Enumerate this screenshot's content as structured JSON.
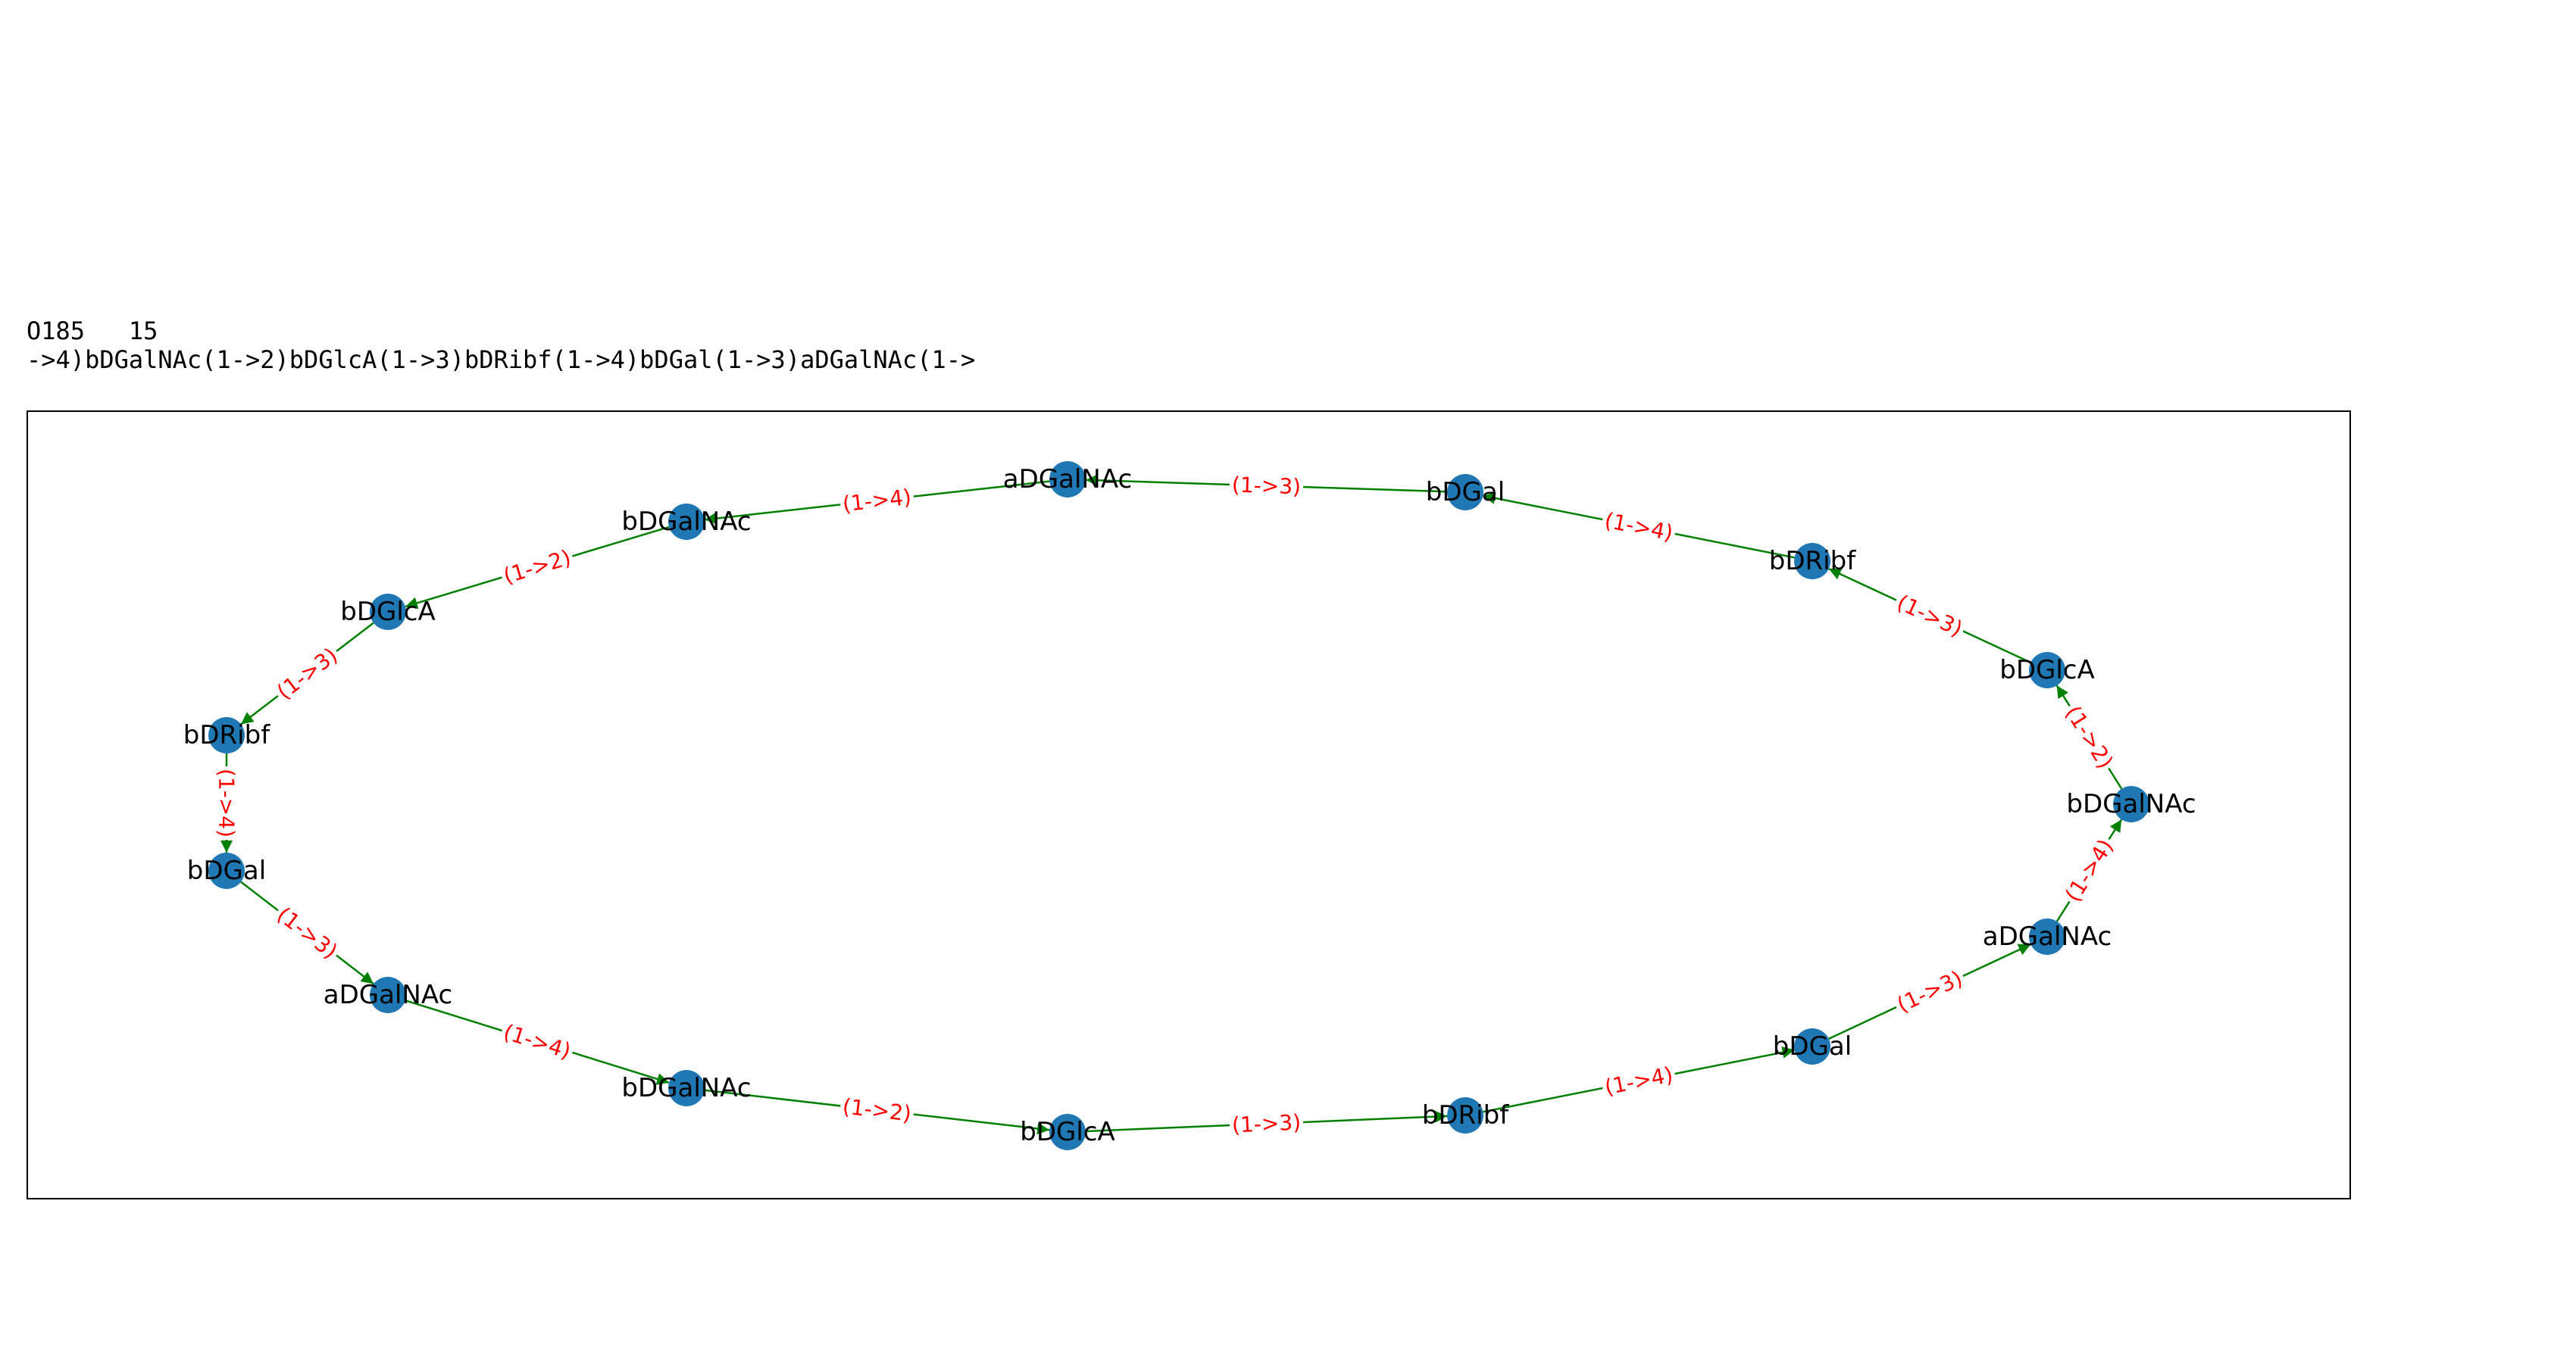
{
  "header": {
    "id_line": "O185   15",
    "formula": "->4)bDGalNAc(1->2)bDGlcA(1->3)bDRibf(1->4)bDGal(1->3)aDGalNAc(1->"
  },
  "colors": {
    "node": "#1f77b4",
    "edge": "#008000",
    "edge_label": "#ff0000",
    "frame": "#000000"
  },
  "graph": {
    "nodes": [
      {
        "id": 0,
        "label": "aDGalNAc"
      },
      {
        "id": 1,
        "label": "bDGal"
      },
      {
        "id": 2,
        "label": "bDRibf"
      },
      {
        "id": 3,
        "label": "bDGlcA"
      },
      {
        "id": 4,
        "label": "bDGalNAc"
      },
      {
        "id": 5,
        "label": "aDGalNAc"
      },
      {
        "id": 6,
        "label": "bDGal"
      },
      {
        "id": 7,
        "label": "bDRibf"
      },
      {
        "id": 8,
        "label": "bDGlcA"
      },
      {
        "id": 9,
        "label": "bDGalNAc"
      },
      {
        "id": 10,
        "label": "aDGalNAc"
      },
      {
        "id": 11,
        "label": "bDGal"
      },
      {
        "id": 12,
        "label": "bDRibf"
      },
      {
        "id": 13,
        "label": "bDGlcA"
      },
      {
        "id": 14,
        "label": "bDGalNAc"
      }
    ],
    "edges": [
      {
        "from": 0,
        "to": 14,
        "label": "(1->4)"
      },
      {
        "from": 14,
        "to": 13,
        "label": "(1->2)"
      },
      {
        "from": 13,
        "to": 12,
        "label": "(1->3)"
      },
      {
        "from": 12,
        "to": 11,
        "label": "(1->4)"
      },
      {
        "from": 11,
        "to": 10,
        "label": "(1->3)"
      },
      {
        "from": 10,
        "to": 9,
        "label": "(1->4)"
      },
      {
        "from": 9,
        "to": 8,
        "label": "(1->2)"
      },
      {
        "from": 8,
        "to": 7,
        "label": "(1->3)"
      },
      {
        "from": 7,
        "to": 6,
        "label": "(1->4)"
      },
      {
        "from": 6,
        "to": 5,
        "label": "(1->3)"
      },
      {
        "from": 5,
        "to": 4,
        "label": "(1->4)"
      },
      {
        "from": 4,
        "to": 3,
        "label": "(1->2)"
      },
      {
        "from": 3,
        "to": 2,
        "label": "(1->3)"
      },
      {
        "from": 2,
        "to": 1,
        "label": "(1->4)"
      },
      {
        "from": 1,
        "to": 0,
        "label": "(1->3)"
      }
    ]
  }
}
